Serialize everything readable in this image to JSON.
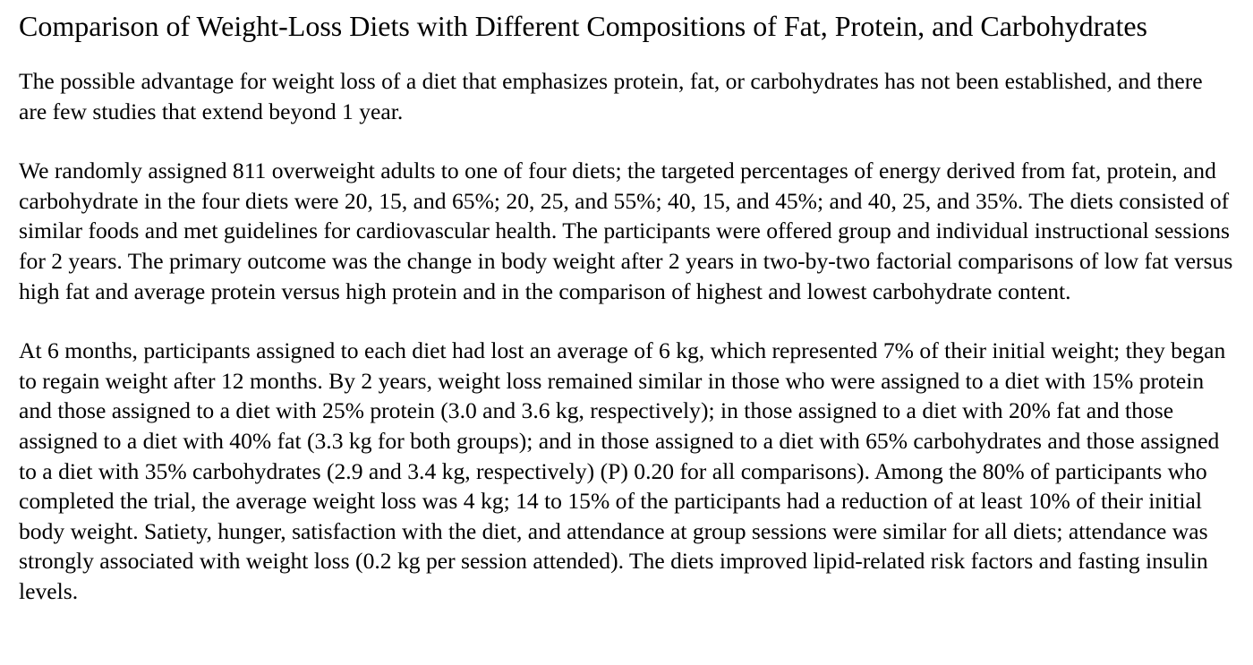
{
  "document": {
    "title": "Comparison of Weight-Loss Diets with Different Compositions of Fat, Protein, and Carbohydrates",
    "paragraphs": [
      "The possible advantage for weight loss of a diet that emphasizes protein, fat, or carbohydrates has not been established, and there are few studies that extend beyond 1 year.",
      "We randomly assigned 811 overweight adults to one of four diets; the targeted percentages of energy derived from fat, protein, and carbohydrate in the four diets were 20, 15, and 65%; 20, 25, and 55%; 40, 15, and 45%; and 40, 25, and 35%. The diets consisted of similar foods and met guidelines for cardiovascular health. The participants were offered group and individual instructional sessions for 2 years. The primary outcome was the change in body weight after 2 years in two-by-two factorial comparisons of low fat versus high fat and average protein versus high protein and in the comparison of highest and lowest carbohydrate content.",
      "At 6 months, participants assigned to each diet had lost an average of 6 kg, which represented 7% of their initial weight; they began to regain weight after 12 months. By 2 years, weight loss remained similar in those who were assigned to a diet with 15% protein and those assigned to a diet with 25% protein (3.0 and 3.6 kg, respectively); in those assigned to a diet with 20% fat and those assigned to a diet with 40% fat (3.3 kg for both groups); and in those assigned to a diet with 65% carbohydrates and those assigned to a diet with 35% carbohydrates (2.9 and 3.4 kg, respectively) (P) 0.20 for all comparisons). Among the 80% of participants who completed the trial, the average weight loss was 4 kg; 14 to 15% of the participants had a reduction of at least 10% of their initial body weight. Satiety, hunger, satisfaction with the diet, and attendance at group sessions were similar for all diets; attendance was strongly associated with weight loss (0.2 kg per session attended). The diets improved lipid-related risk factors and fasting insulin levels."
    ]
  }
}
